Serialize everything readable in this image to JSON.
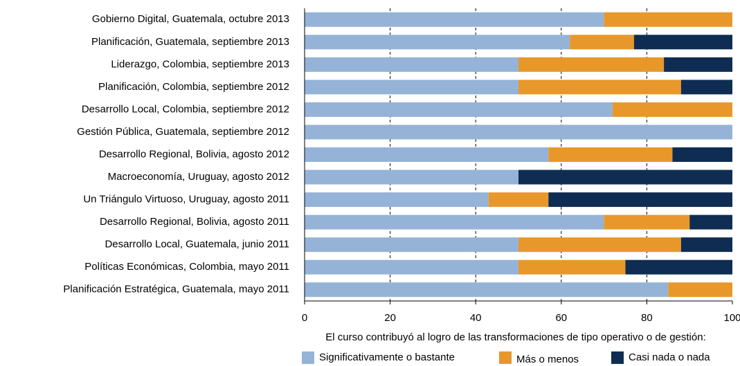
{
  "chart_data": {
    "type": "stacked-barh",
    "categories": [
      "Gobierno Digital, Guatemala,  octubre 2013",
      "Planificación, Guatemala,  septiembre 2013",
      "Liderazgo, Colombia, septiembre  2013",
      "Planificación, Colombia,  septiembre 2012",
      "Desarrollo Local, Colombia, septiembre 2012",
      "Gestión Pública, Guatemala, septiembre 2012",
      "Desarrollo Regional, Bolivia,  agosto 2012",
      "Macroeconomía, Uruguay, agosto  2012",
      "Un Triángulo Virtuoso, Uruguay, agosto 2011",
      "Desarrollo Regional, Bolivia, agosto 2011",
      "Desarrollo Local, Guatemala,  junio 2011",
      "Políticas Económicas, Colombia,  mayo 2011",
      "Planificación Estratégica, Guatemala, mayo 2011"
    ],
    "series": [
      {
        "name": "Significativamente o bastante",
        "color": "#95b3d7",
        "values": [
          70,
          62,
          50,
          50,
          72,
          100,
          57,
          50,
          43,
          70,
          50,
          50,
          85
        ]
      },
      {
        "name": "Más o menos",
        "color": "#e8982a",
        "values": [
          30,
          15,
          34,
          38,
          28,
          0,
          29,
          0,
          14,
          20,
          38,
          25,
          15
        ]
      },
      {
        "name": "Casi nada o nada",
        "color": "#0f2d52",
        "values": [
          0,
          23,
          16,
          12,
          0,
          0,
          14,
          50,
          43,
          10,
          12,
          25,
          0
        ]
      }
    ],
    "xlabel": "El curso contribuyó al logro de las transformaciones de tipo operativo o de gestión:",
    "xlim": [
      0,
      100
    ],
    "xticks": [
      0,
      20,
      40,
      60,
      80,
      100
    ],
    "grid": true
  }
}
